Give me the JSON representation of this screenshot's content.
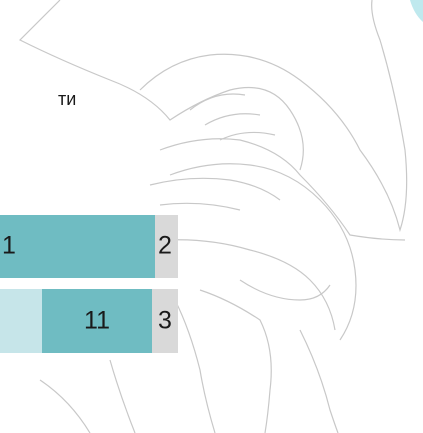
{
  "caption": "ти",
  "rows": [
    {
      "segments": [
        "1",
        "2"
      ]
    },
    {
      "segments": [
        "11",
        "3"
      ]
    }
  ]
}
